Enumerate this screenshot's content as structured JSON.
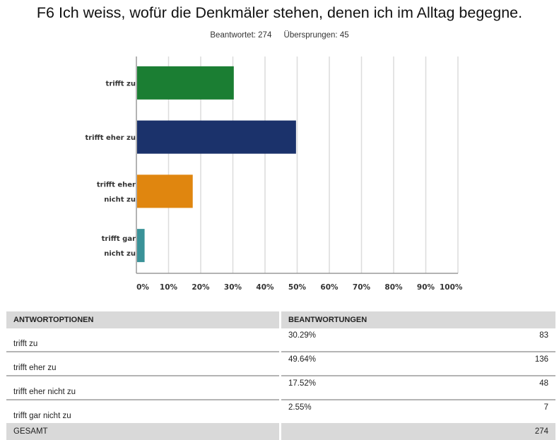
{
  "header": {
    "title": "F6 Ich weiss, wofür die Denkmäler stehen, denen ich im Alltag begegne.",
    "answered": "Beantwortet: 274",
    "skipped": "Übersprungen: 45"
  },
  "chart_data": {
    "type": "bar",
    "orientation": "horizontal",
    "title": "F6 Ich weiss, wofür die Denkmäler stehen, denen ich im Alltag begegne.",
    "xlabel": "",
    "ylabel": "",
    "xlim": [
      0,
      100
    ],
    "grid": true,
    "categories": [
      [
        "trifft zu"
      ],
      [
        "trifft eher zu"
      ],
      [
        "trifft eher",
        "nicht zu"
      ],
      [
        "trifft gar",
        "nicht zu"
      ]
    ],
    "values": [
      30.29,
      49.64,
      17.52,
      2.55
    ],
    "colors": [
      "#1b7e33",
      "#1b326b",
      "#e0860f",
      "#3a9298"
    ],
    "x_ticks": [
      "0%",
      "10%",
      "20%",
      "30%",
      "40%",
      "50%",
      "60%",
      "70%",
      "80%",
      "90%",
      "100%"
    ]
  },
  "table": {
    "headers": [
      "ANTWORTOPTIONEN",
      "BEANTWORTUNGEN"
    ],
    "rows": [
      {
        "option": "trifft zu",
        "percent": "30.29%",
        "count": "83"
      },
      {
        "option": "trifft eher zu",
        "percent": "49.64%",
        "count": "136"
      },
      {
        "option": "trifft eher nicht zu",
        "percent": "17.52%",
        "count": "48"
      },
      {
        "option": "trifft gar nicht zu",
        "percent": "2.55%",
        "count": "7"
      }
    ],
    "total_label": "GESAMT",
    "total_count": "274"
  }
}
